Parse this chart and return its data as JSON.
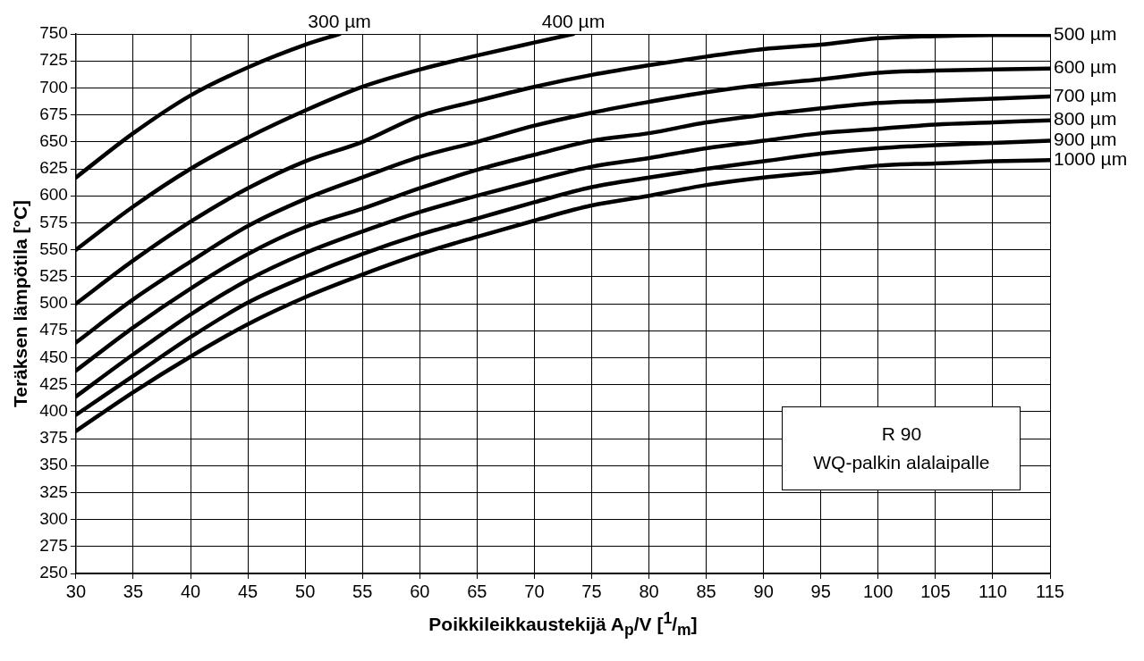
{
  "chart_data": {
    "type": "line",
    "xlabel": "Poikkileikkaustekijä A$_{p}$/V [$^{1}$/$_{m}$]",
    "ylabel": "Teräksen lämpötila [°C]",
    "xlim": [
      30,
      115
    ],
    "xticks": [
      30,
      35,
      40,
      45,
      50,
      55,
      60,
      65,
      70,
      75,
      80,
      85,
      90,
      95,
      100,
      105,
      110,
      115
    ],
    "ylim": [
      250,
      750
    ],
    "yticks": [
      250,
      275,
      300,
      325,
      350,
      375,
      400,
      425,
      450,
      475,
      500,
      525,
      550,
      575,
      600,
      625,
      650,
      675,
      700,
      725,
      750
    ],
    "grid": true,
    "legend": false,
    "marker": "none",
    "line_style": "solid",
    "annotations": [
      "R 90",
      "WQ-palkin alalaipalle"
    ],
    "series": [
      {
        "name": "300 µm",
        "color": "#000000",
        "x": [
          30,
          35,
          40,
          45,
          50,
          53
        ],
        "values": [
          617,
          658,
          693,
          719,
          740,
          750
        ]
      },
      {
        "name": "400 µm",
        "color": "#000000",
        "x": [
          30,
          35,
          40,
          45,
          50,
          55,
          60,
          65,
          70,
          73.4
        ],
        "values": [
          550,
          590,
          625,
          654,
          679,
          701,
          717,
          730,
          742,
          750
        ]
      },
      {
        "name": "500 µm",
        "color": "#000000",
        "x": [
          30,
          35,
          40,
          45,
          50,
          55,
          60,
          65,
          70,
          75,
          80,
          85,
          90,
          95,
          100,
          105,
          110,
          115
        ],
        "values": [
          500,
          540,
          576,
          607,
          632,
          650,
          674,
          688,
          701,
          712,
          721,
          729,
          736,
          740,
          746,
          748,
          749,
          749
        ]
      },
      {
        "name": "600 µm",
        "color": "#000000",
        "x": [
          30,
          35,
          40,
          45,
          50,
          55,
          60,
          65,
          70,
          75,
          80,
          85,
          90,
          95,
          100,
          105,
          110,
          115
        ],
        "values": [
          464,
          504,
          539,
          572,
          597,
          617,
          636,
          650,
          665,
          677,
          687,
          696,
          703,
          708,
          714,
          716,
          717,
          718
        ]
      },
      {
        "name": "700 µm",
        "color": "#000000",
        "x": [
          30,
          35,
          40,
          45,
          50,
          55,
          60,
          65,
          70,
          75,
          80,
          85,
          90,
          95,
          100,
          105,
          110,
          115
        ],
        "values": [
          438,
          478,
          514,
          546,
          571,
          588,
          607,
          624,
          638,
          651,
          658,
          668,
          675,
          681,
          686,
          688,
          690,
          692
        ]
      },
      {
        "name": "800 µm",
        "color": "#000000",
        "x": [
          30,
          35,
          40,
          45,
          50,
          55,
          60,
          65,
          70,
          75,
          80,
          85,
          90,
          95,
          100,
          105,
          110,
          115
        ],
        "values": [
          414,
          453,
          490,
          522,
          547,
          567,
          585,
          600,
          614,
          627,
          635,
          644,
          651,
          658,
          662,
          666,
          668,
          670
        ]
      },
      {
        "name": "900 µm",
        "color": "#000000",
        "x": [
          30,
          35,
          40,
          45,
          50,
          55,
          60,
          65,
          70,
          75,
          80,
          85,
          90,
          95,
          100,
          105,
          110,
          115
        ],
        "values": [
          397,
          433,
          469,
          501,
          525,
          546,
          564,
          579,
          594,
          608,
          617,
          625,
          632,
          639,
          644,
          647,
          649,
          651
        ]
      },
      {
        "name": "1000 µm",
        "color": "#000000",
        "x": [
          30,
          35,
          40,
          45,
          50,
          55,
          60,
          65,
          70,
          75,
          80,
          85,
          90,
          95,
          100,
          105,
          110,
          115
        ],
        "values": [
          382,
          418,
          451,
          481,
          506,
          527,
          546,
          562,
          577,
          591,
          600,
          610,
          617,
          622,
          628,
          630,
          632,
          633
        ]
      }
    ]
  }
}
